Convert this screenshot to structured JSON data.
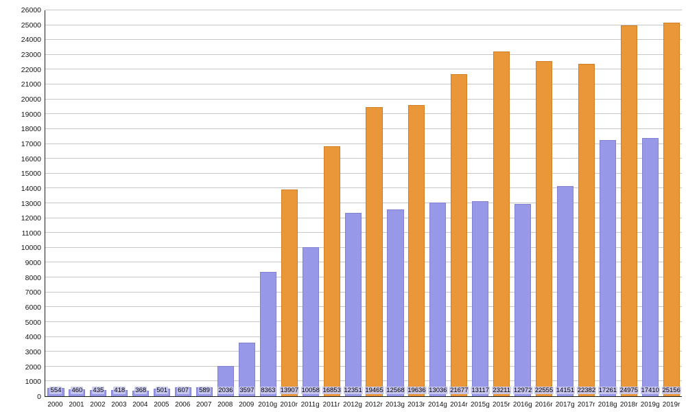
{
  "chart_data": {
    "type": "bar",
    "title": "",
    "xlabel": "",
    "ylabel": "",
    "ylim": [
      0,
      26000
    ],
    "ytick_step": 1000,
    "grid": true,
    "legend": "none",
    "categories": [
      "2000",
      "2001",
      "2002",
      "2003",
      "2004",
      "2005",
      "2006",
      "2007",
      "2008",
      "2009",
      "2010g",
      "2010r",
      "2011g",
      "2011r",
      "2012g",
      "2012r",
      "2013g",
      "2013r",
      "2014g",
      "2014r",
      "2015g",
      "2015r",
      "2016g",
      "2016r",
      "2017g",
      "2017r",
      "2018g",
      "2018r",
      "2019g",
      "2019r"
    ],
    "values": [
      554,
      460,
      435,
      418,
      368,
      501,
      607,
      589,
      2036,
      3597,
      8363,
      13907,
      10058,
      16853,
      12351,
      19465,
      12568,
      19636,
      13036,
      21677,
      13117,
      23211,
      12972,
      22555,
      14151,
      22382,
      17261,
      24975,
      17410,
      25156
    ],
    "bar_series": [
      "g",
      "g",
      "g",
      "g",
      "g",
      "g",
      "g",
      "g",
      "g",
      "g",
      "g",
      "r",
      "g",
      "r",
      "g",
      "r",
      "g",
      "r",
      "g",
      "r",
      "g",
      "r",
      "g",
      "r",
      "g",
      "r",
      "g",
      "r",
      "g",
      "r"
    ],
    "palette": {
      "g_fill": "#9898e8",
      "g_border": "#8080cf",
      "r_fill": "#ea973a",
      "r_border": "#cf7d20"
    },
    "value_label_background": "#c9c9ef",
    "gridline_color": "#c6c6c6",
    "axis_color": "#1a1a1a"
  }
}
